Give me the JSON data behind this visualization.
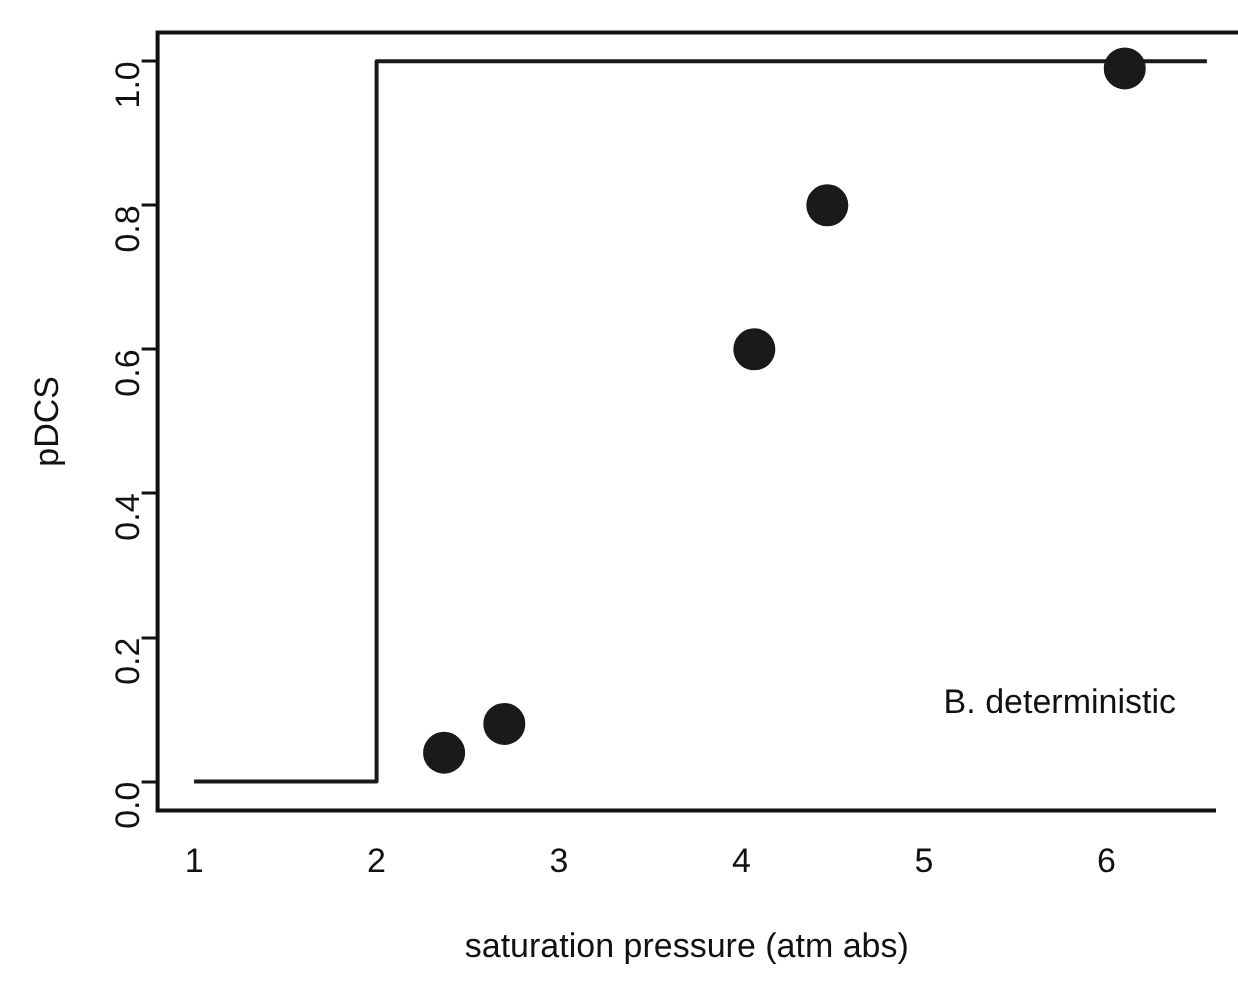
{
  "chart_data": {
    "type": "scatter",
    "xlabel": "saturation pressure (atm abs)",
    "ylabel": "pDCS",
    "series": [
      {
        "color": "#1a1a1a",
        "x": [
          2.37,
          2.7,
          4.07,
          4.47,
          6.1
        ],
        "values": [
          0.04,
          0.08,
          0.6,
          0.8,
          0.99
        ],
        "marker": "circle"
      },
      {
        "type": "step",
        "color": "#1a1a1a",
        "x": [
          1,
          2,
          6.55
        ],
        "values": [
          0,
          1,
          1
        ],
        "marker": "none"
      }
    ],
    "xlim": [
      0.8,
      6.6
    ],
    "xticks": [
      1,
      2,
      3,
      4,
      5,
      6
    ],
    "ylim": [
      -0.04,
      1.04
    ],
    "yticks": [
      {
        "value": 0,
        "label": "0.0"
      },
      {
        "value": 0.2,
        "label": "0.2"
      },
      {
        "value": 0.4,
        "label": "0.4"
      },
      {
        "value": 0.6,
        "label": "0.6"
      },
      {
        "value": 0.8,
        "label": "0.8"
      },
      {
        "value": 1,
        "label": "1.0"
      }
    ],
    "grid": false,
    "legend": false,
    "annotations": [
      "B. deterministic"
    ]
  }
}
